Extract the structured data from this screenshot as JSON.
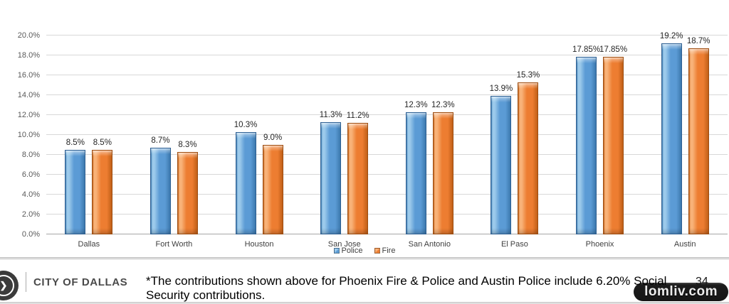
{
  "chart_data": {
    "type": "bar",
    "title": "",
    "xlabel": "",
    "ylabel": "",
    "categories": [
      "Dallas",
      "Fort Worth",
      "Houston",
      "San Jose",
      "San Antonio",
      "El Paso",
      "Phoenix",
      "Austin"
    ],
    "series": [
      {
        "name": "Police",
        "values": [
          8.5,
          8.7,
          10.3,
          11.3,
          12.3,
          13.9,
          17.85,
          19.2
        ],
        "labels": [
          "8.5%",
          "8.7%",
          "10.3%",
          "11.3%",
          "12.3%",
          "13.9%",
          "17.85%",
          "19.2%"
        ],
        "color": "#5B9BD5",
        "color_highlight": "#9CCAEB",
        "color_shade": "#3C78AD",
        "color_edge": "#2E6093"
      },
      {
        "name": "Fire",
        "values": [
          8.5,
          8.3,
          9.0,
          11.2,
          12.3,
          15.3,
          17.85,
          18.7
        ],
        "labels": [
          "8.5%",
          "8.3%",
          "9.0%",
          "11.2%",
          "12.3%",
          "15.3%",
          "17.85%",
          "18.7%"
        ],
        "color": "#ED7D31",
        "color_highlight": "#F8B278",
        "color_shade": "#C05F17",
        "color_edge": "#9E4E12"
      }
    ],
    "ylim": [
      0,
      20
    ],
    "ytick_step": 2,
    "ytick_labels": [
      "0.0%",
      "2.0%",
      "4.0%",
      "6.0%",
      "8.0%",
      "10.0%",
      "12.0%",
      "14.0%",
      "16.0%",
      "18.0%",
      "20.0%"
    ],
    "grid": true,
    "legend_position": "bottom-center"
  },
  "colors": {
    "gridline": "#D8D8D8",
    "axis_line": "#A6A6A6",
    "axis_text": "#595959",
    "data_label_text": "#262626"
  },
  "footer": {
    "org_name": "CITY OF DALLAS",
    "note": "*The contributions shown above for Phoenix Fire & Police and Austin Police include 6.20% Social Security contributions.",
    "page_number": "34"
  },
  "watermark": {
    "text": "lomliv.com",
    "background": "#161616",
    "text_color": "#ECECEC"
  }
}
